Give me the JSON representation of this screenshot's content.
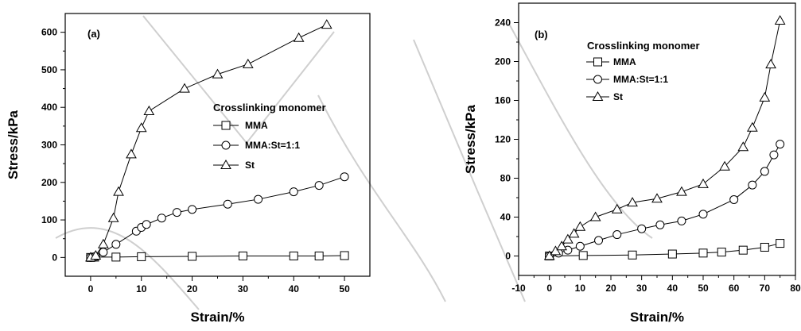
{
  "chart_data": [
    {
      "type": "line",
      "panel_label": "(a)",
      "xlabel": "Strain/%",
      "ylabel": "Stress/kPa",
      "xlim": [
        -5,
        55
      ],
      "ylim": [
        -50,
        650
      ],
      "xticks": [
        0,
        10,
        20,
        30,
        40,
        50
      ],
      "yticks": [
        0,
        100,
        200,
        300,
        400,
        500,
        600
      ],
      "legend_title": "Crosslinking monomer",
      "legend_position": "right-middle",
      "series": [
        {
          "name": "MMA",
          "marker": "square",
          "x": [
            0,
            0.8,
            5,
            10,
            20,
            30,
            40,
            45,
            50
          ],
          "y": [
            0,
            1,
            1,
            2,
            3,
            4,
            4,
            4,
            5
          ]
        },
        {
          "name": "MMA:St=1:1",
          "marker": "circle",
          "x": [
            0,
            1,
            2.5,
            5,
            9,
            10,
            11,
            14,
            17,
            20,
            27,
            33,
            40,
            45,
            50
          ],
          "y": [
            0,
            3,
            14,
            35,
            70,
            80,
            88,
            105,
            120,
            128,
            142,
            155,
            175,
            192,
            215
          ]
        },
        {
          "name": "St",
          "marker": "triangle",
          "x": [
            0,
            1,
            2.5,
            4.5,
            5.5,
            8,
            10,
            11.5,
            18.5,
            25,
            31,
            41,
            46.5
          ],
          "y": [
            0,
            5,
            35,
            105,
            175,
            275,
            345,
            390,
            450,
            488,
            515,
            585,
            620
          ]
        }
      ]
    },
    {
      "type": "line",
      "panel_label": "(b)",
      "xlabel": "Strain/%",
      "ylabel": "Stress/kPa",
      "xlim": [
        -10,
        80
      ],
      "ylim": [
        -20,
        260
      ],
      "xticks": [
        -10,
        0,
        10,
        20,
        30,
        40,
        50,
        60,
        70,
        80
      ],
      "yticks": [
        0,
        40,
        80,
        120,
        160,
        200,
        240
      ],
      "legend_title": "Crosslinking monomer",
      "legend_position": "top-left",
      "series": [
        {
          "name": "MMA",
          "marker": "square",
          "x": [
            0,
            11,
            27,
            40,
            50,
            56,
            63,
            70,
            75
          ],
          "y": [
            0,
            0.5,
            1,
            2,
            3,
            4,
            6,
            9,
            13
          ]
        },
        {
          "name": "MMA:St=1:1",
          "marker": "circle",
          "x": [
            0,
            3,
            6,
            10,
            16,
            22,
            30,
            36,
            43,
            50,
            60,
            66,
            70,
            73,
            75
          ],
          "y": [
            0,
            3,
            6,
            10,
            16,
            22,
            28,
            32,
            36,
            43,
            58,
            73,
            87,
            104,
            115
          ]
        },
        {
          "name": "St",
          "marker": "triangle",
          "x": [
            0,
            2,
            4,
            6,
            8,
            10,
            15,
            22,
            27,
            35,
            43,
            50,
            57,
            63,
            66,
            70,
            72,
            75
          ],
          "y": [
            0,
            5,
            10,
            17,
            23,
            30,
            40,
            48,
            55,
            59,
            66,
            74,
            92,
            112,
            132,
            163,
            197,
            242
          ]
        }
      ]
    }
  ]
}
